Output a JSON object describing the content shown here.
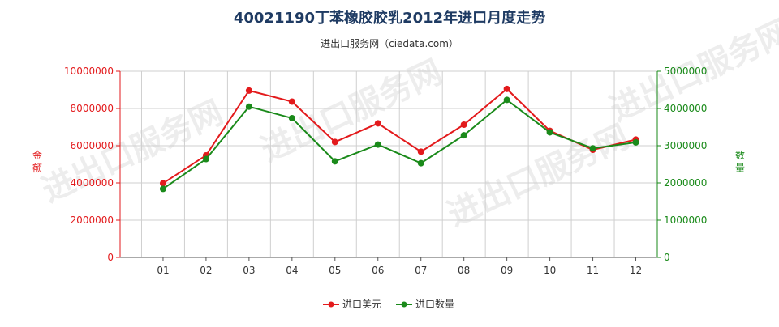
{
  "chart_data": {
    "type": "line",
    "title": "40021190丁苯橡胶胶乳2012年进口月度走势",
    "subtitle": "进出口服务网（ciedata.com）",
    "categories": [
      "01",
      "02",
      "03",
      "04",
      "05",
      "06",
      "07",
      "08",
      "09",
      "10",
      "11",
      "12"
    ],
    "y_left": {
      "label": "金额",
      "ylim": [
        0,
        10000000
      ],
      "ticks": [
        "0",
        "2000000",
        "4000000",
        "6000000",
        "8000000",
        "10000000"
      ],
      "color": "#e31a1c"
    },
    "y_right": {
      "label": "数量",
      "ylim": [
        0,
        5000000
      ],
      "ticks": [
        "0",
        "1000000",
        "2000000",
        "3000000",
        "4000000",
        "5000000"
      ],
      "color": "#1a8a1a"
    },
    "series": [
      {
        "name": "进口美元",
        "axis": "left",
        "color": "#e31a1c",
        "values": [
          3980000,
          5480000,
          8960000,
          8370000,
          6200000,
          7200000,
          5680000,
          7130000,
          9050000,
          6800000,
          5780000,
          6330000
        ]
      },
      {
        "name": "进口数量",
        "axis": "right",
        "color": "#1a8a1a",
        "values": [
          1840000,
          2640000,
          4050000,
          3740000,
          2580000,
          3030000,
          2530000,
          3280000,
          4230000,
          3360000,
          2930000,
          3090000
        ]
      }
    ],
    "grid": true,
    "legend_position": "bottom-center",
    "watermark": "进出口服务网"
  }
}
